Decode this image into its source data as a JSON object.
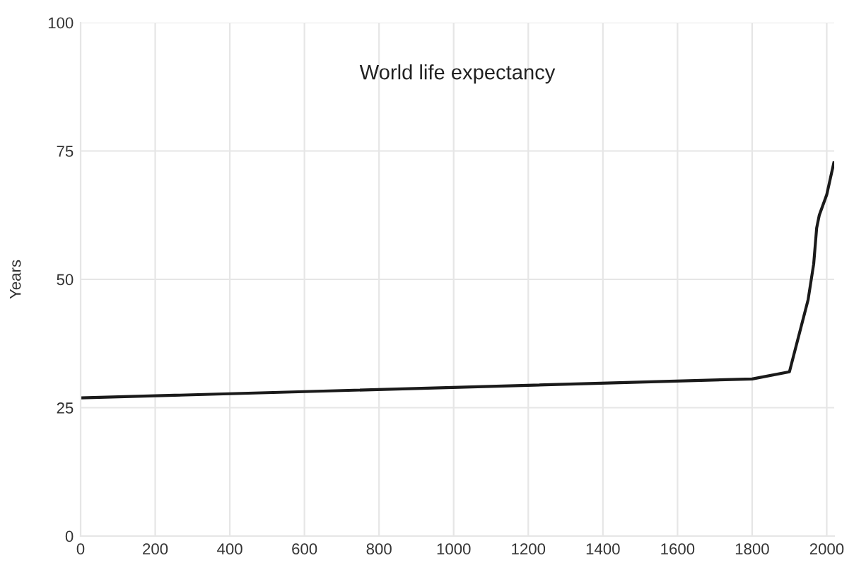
{
  "chart_data": {
    "type": "line",
    "title": "World life expectancy",
    "ylabel": "Years",
    "x": [
      0,
      1800,
      1900,
      1950,
      1965,
      1973,
      1980,
      2000,
      2019
    ],
    "series": [
      {
        "color": "#1a1a1a",
        "values": [
          26.9,
          30.6,
          32,
          46,
          53,
          60,
          62.5,
          66.5,
          72.7
        ]
      }
    ],
    "xlim": [
      0,
      2020
    ],
    "xticks": [
      0,
      200,
      400,
      600,
      800,
      1000,
      1200,
      1400,
      1600,
      1800,
      2000
    ],
    "ylim": [
      0,
      100
    ],
    "yticks": [
      0,
      25,
      50,
      75,
      100
    ],
    "grid": true,
    "legend": false
  }
}
